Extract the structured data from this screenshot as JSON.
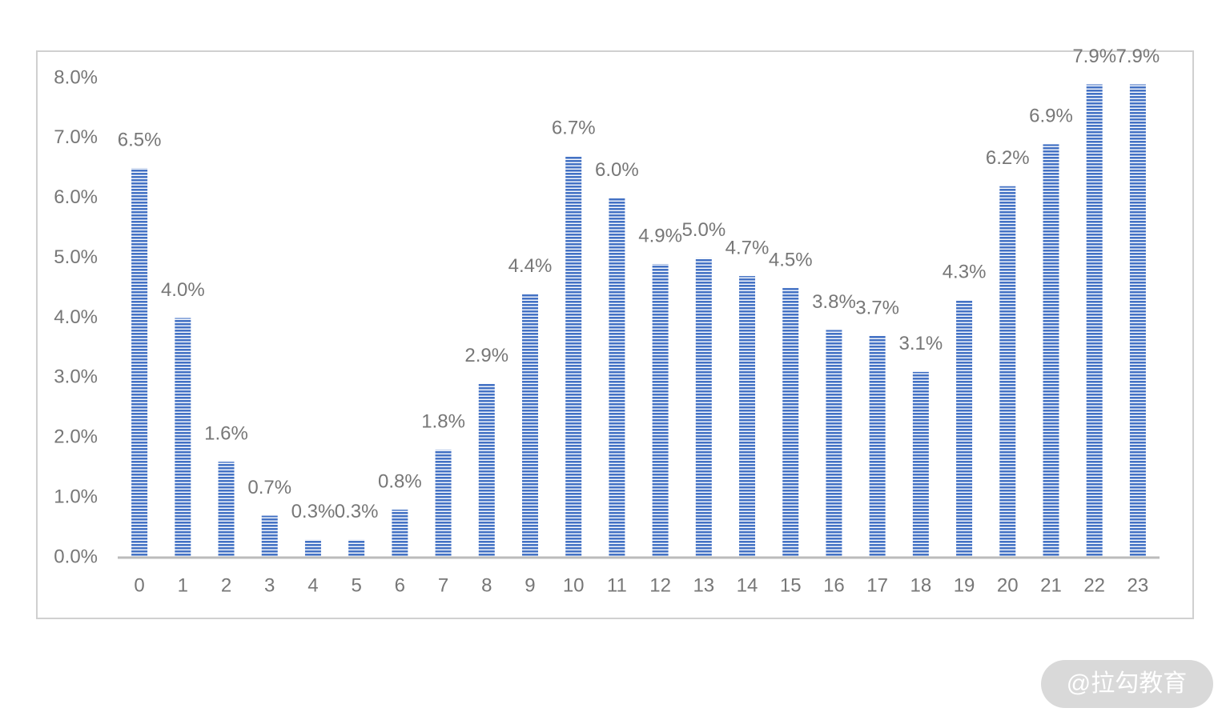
{
  "chart_data": {
    "type": "bar",
    "categories": [
      "0",
      "1",
      "2",
      "3",
      "4",
      "5",
      "6",
      "7",
      "8",
      "9",
      "10",
      "11",
      "12",
      "13",
      "14",
      "15",
      "16",
      "17",
      "18",
      "19",
      "20",
      "21",
      "22",
      "23"
    ],
    "values": [
      6.5,
      4.0,
      1.6,
      0.7,
      0.3,
      0.3,
      0.8,
      1.8,
      2.9,
      4.4,
      6.7,
      6.0,
      4.9,
      5.0,
      4.7,
      4.5,
      3.8,
      3.7,
      3.1,
      4.3,
      6.2,
      6.9,
      7.9,
      7.9
    ],
    "value_labels": [
      "6.5%",
      "4.0%",
      "1.6%",
      "0.7%",
      "0.3%",
      "0.3%",
      "0.8%",
      "1.8%",
      "2.9%",
      "4.4%",
      "6.7%",
      "6.0%",
      "4.9%",
      "5.0%",
      "4.7%",
      "4.5%",
      "3.8%",
      "3.7%",
      "3.1%",
      "4.3%",
      "6.2%",
      "6.9%",
      "7.9%",
      "7.9%"
    ],
    "color": "#4472c4",
    "ylim": [
      0,
      8
    ],
    "yticks": [
      {
        "value": 0,
        "label": "0.0%"
      },
      {
        "value": 1,
        "label": "1.0%"
      },
      {
        "value": 2,
        "label": "2.0%"
      },
      {
        "value": 3,
        "label": "3.0%"
      },
      {
        "value": 4,
        "label": "4.0%"
      },
      {
        "value": 5,
        "label": "5.0%"
      },
      {
        "value": 6,
        "label": "6.0%"
      },
      {
        "value": 7,
        "label": "7.0%"
      },
      {
        "value": 8,
        "label": "8.0%"
      }
    ],
    "grid": false
  },
  "watermark": "@拉勾教育"
}
